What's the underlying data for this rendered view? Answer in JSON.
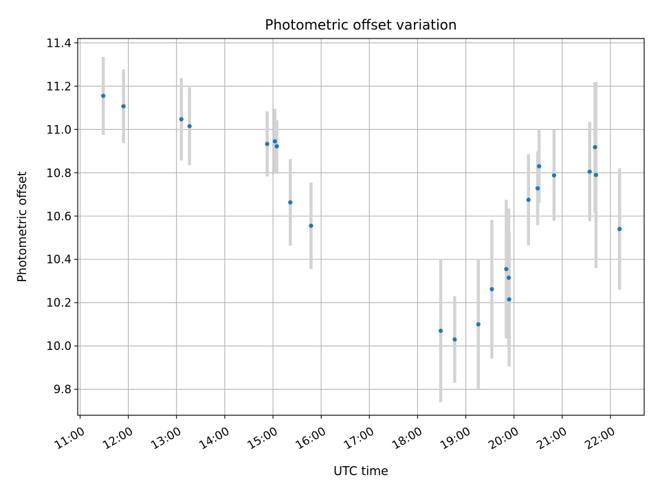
{
  "chart_data": {
    "type": "scatter",
    "title": "Photometric offset variation",
    "xlabel": "UTC time",
    "ylabel": "Photometric offset",
    "x_unit": "hours (UTC)",
    "xlim": [
      10.95,
      22.7
    ],
    "ylim": [
      9.68,
      11.42
    ],
    "x_ticks": [
      {
        "value": 11,
        "label": "11:00"
      },
      {
        "value": 12,
        "label": "12:00"
      },
      {
        "value": 13,
        "label": "13:00"
      },
      {
        "value": 14,
        "label": "14:00"
      },
      {
        "value": 15,
        "label": "15:00"
      },
      {
        "value": 16,
        "label": "16:00"
      },
      {
        "value": 17,
        "label": "17:00"
      },
      {
        "value": 18,
        "label": "18:00"
      },
      {
        "value": 19,
        "label": "19:00"
      },
      {
        "value": 20,
        "label": "20:00"
      },
      {
        "value": 21,
        "label": "21:00"
      },
      {
        "value": 22,
        "label": "22:00"
      }
    ],
    "y_ticks": [
      {
        "value": 9.8,
        "label": "9.8"
      },
      {
        "value": 10.0,
        "label": "10.0"
      },
      {
        "value": 10.2,
        "label": "10.2"
      },
      {
        "value": 10.4,
        "label": "10.4"
      },
      {
        "value": 10.6,
        "label": "10.6"
      },
      {
        "value": 10.8,
        "label": "10.8"
      },
      {
        "value": 11.0,
        "label": "11.0"
      },
      {
        "value": 11.2,
        "label": "11.2"
      },
      {
        "value": 11.4,
        "label": "11.4"
      }
    ],
    "grid": true,
    "colors": {
      "points": "#1f77b4",
      "errorbars": "#d3d3d3",
      "grid": "#b0b0b0"
    },
    "points": [
      {
        "x": 11.48,
        "y": 11.155,
        "err": 0.18
      },
      {
        "x": 11.9,
        "y": 11.107,
        "err": 0.17
      },
      {
        "x": 13.1,
        "y": 11.047,
        "err": 0.19
      },
      {
        "x": 13.27,
        "y": 11.015,
        "err": 0.18
      },
      {
        "x": 14.88,
        "y": 10.933,
        "err": 0.15
      },
      {
        "x": 15.04,
        "y": 10.945,
        "err": 0.15
      },
      {
        "x": 15.08,
        "y": 10.922,
        "err": 0.12
      },
      {
        "x": 15.36,
        "y": 10.663,
        "err": 0.2
      },
      {
        "x": 15.79,
        "y": 10.555,
        "err": 0.2
      },
      {
        "x": 18.48,
        "y": 10.07,
        "err": 0.33
      },
      {
        "x": 18.77,
        "y": 10.03,
        "err": 0.2
      },
      {
        "x": 19.26,
        "y": 10.1,
        "err": 0.3
      },
      {
        "x": 19.54,
        "y": 10.262,
        "err": 0.32
      },
      {
        "x": 19.84,
        "y": 10.355,
        "err": 0.32
      },
      {
        "x": 19.89,
        "y": 10.315,
        "err": 0.32
      },
      {
        "x": 19.9,
        "y": 10.215,
        "err": 0.31
      },
      {
        "x": 20.3,
        "y": 10.675,
        "err": 0.21
      },
      {
        "x": 20.49,
        "y": 10.728,
        "err": 0.17
      },
      {
        "x": 20.52,
        "y": 10.83,
        "err": 0.17
      },
      {
        "x": 20.83,
        "y": 10.788,
        "err": 0.21
      },
      {
        "x": 21.57,
        "y": 10.805,
        "err": 0.23
      },
      {
        "x": 21.68,
        "y": 10.918,
        "err": 0.3
      },
      {
        "x": 21.7,
        "y": 10.79,
        "err": 0.43
      },
      {
        "x": 22.19,
        "y": 10.54,
        "err": 0.28
      }
    ]
  }
}
